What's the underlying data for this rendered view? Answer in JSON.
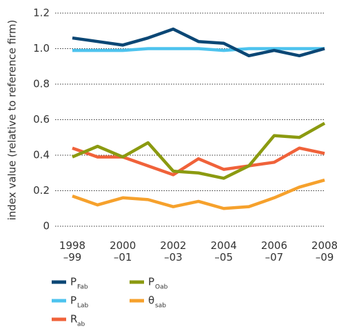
{
  "chart_data": {
    "type": "line",
    "y_label": "index value (relative to reference firm)",
    "categories": [
      "1998\n–99",
      null,
      "2000\n–01",
      null,
      "2002\n–03",
      null,
      "2004\n–05",
      null,
      "2006\n–07",
      null,
      "2008\n–09"
    ],
    "ylim": [
      0,
      1.2
    ],
    "yticks": [
      0,
      0.2,
      0.4,
      0.6,
      0.8,
      {
        "value": 1,
        "label": "1.0"
      },
      1.2
    ],
    "grid": true,
    "series": [
      {
        "name": "P",
        "name_sub": "Fab",
        "color": "#0b4775",
        "values": [
          1.06,
          1.04,
          1.02,
          1.06,
          1.11,
          1.04,
          1.03,
          0.96,
          0.99,
          0.96,
          1.0
        ]
      },
      {
        "name": "P",
        "name_sub": "Lab",
        "color": "#4dc3ee",
        "values": [
          0.99,
          0.99,
          0.99,
          1.0,
          1.0,
          1.0,
          0.99,
          1.0,
          1.0,
          1.0,
          1.0
        ]
      },
      {
        "name": "R",
        "name_sub": "ab",
        "color": "#f0623a",
        "values": [
          0.44,
          0.39,
          0.39,
          0.34,
          0.29,
          0.38,
          0.32,
          0.34,
          0.36,
          0.44,
          0.41
        ]
      },
      {
        "name": "P",
        "name_sub": "Oab",
        "color": "#8b9a10",
        "values": [
          0.39,
          0.45,
          0.39,
          0.47,
          0.31,
          0.3,
          0.27,
          0.34,
          0.51,
          0.5,
          0.58
        ]
      },
      {
        "name": "θ",
        "name_sub": "sab",
        "color": "#f6a12c",
        "values": [
          0.17,
          0.12,
          0.16,
          0.15,
          0.11,
          0.14,
          0.1,
          0.11,
          0.16,
          0.22,
          0.26
        ]
      }
    ]
  }
}
